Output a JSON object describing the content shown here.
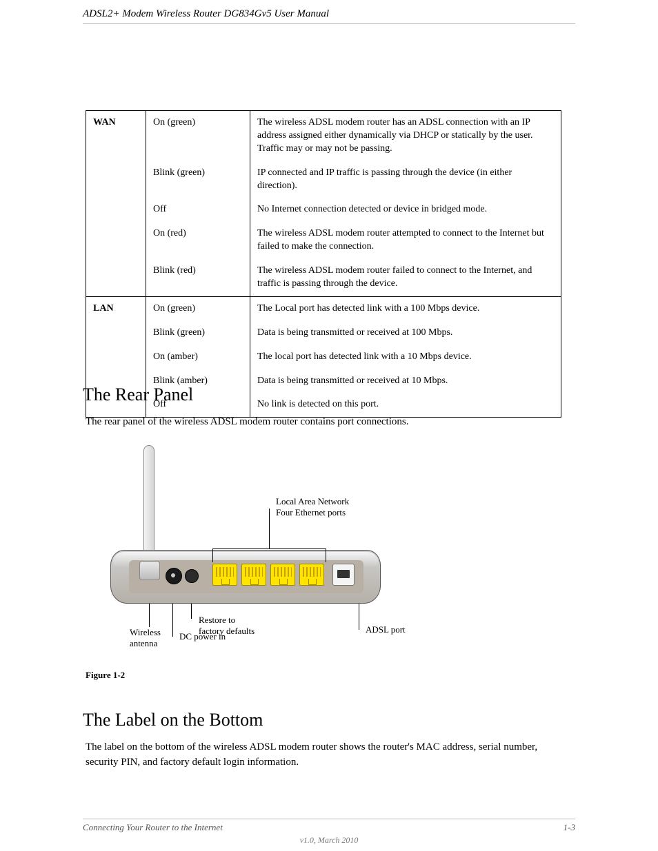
{
  "header": {
    "left": "ADSL2+ Modem Wireless Router DG834Gv5 User Manual",
    "right": ""
  },
  "sec_rear": "The Rear Panel",
  "sec_label": "The Label on the Bottom",
  "table": {
    "rows": [
      {
        "label": "WAN",
        "groups": [
          {
            "sub": "On (green)",
            "desc": "The wireless ADSL modem router has an ADSL connection with an IP address assigned either dynamically via DHCP or statically by the user. Traffic may or may not be passing."
          },
          {
            "sub": "Blink (green)",
            "desc": "IP connected and IP traffic is passing through the device (in either direction)."
          },
          {
            "sub": "Off",
            "desc": "No Internet connection detected or device in bridged mode."
          },
          {
            "sub": "On (red)",
            "desc": "The wireless ADSL modem router attempted to connect to the Internet but failed to make the connection."
          },
          {
            "sub": "Blink (red)",
            "desc": "The wireless ADSL modem router failed to connect to the Internet, and traffic is passing through the device."
          }
        ]
      },
      {
        "label": "LAN",
        "groups": [
          {
            "sub": "On (green)",
            "desc": "The Local port has detected link with a 100 Mbps device."
          },
          {
            "sub": "Blink (green)",
            "desc": "Data is being transmitted or received at 100 Mbps."
          },
          {
            "sub": "On (amber)",
            "desc": "The local port has detected link with a 10 Mbps device."
          },
          {
            "sub": "Blink (amber)",
            "desc": "Data is being transmitted or received at 10 Mbps."
          },
          {
            "sub": "Off",
            "desc": "No link is detected on this port."
          }
        ]
      }
    ]
  },
  "body_text": "The rear panel of the wireless ADSL modem router contains port connections.",
  "labels": {
    "lan": "Local Area Network\nFour Ethernet ports",
    "antenna": "Wireless\nantenna",
    "dc": "DC power in",
    "reset": "Restore to\nfactory defaults",
    "adsl": "ADSL port"
  },
  "figcap": "Figure 1-2",
  "bottom_text": "The label on the bottom of the wireless ADSL modem router shows the router's MAC address, serial number, security PIN, and factory default login information.",
  "footer": {
    "left": "Connecting Your Router to the Internet",
    "right": "1-3",
    "ver": "v1.0, March 2010"
  }
}
